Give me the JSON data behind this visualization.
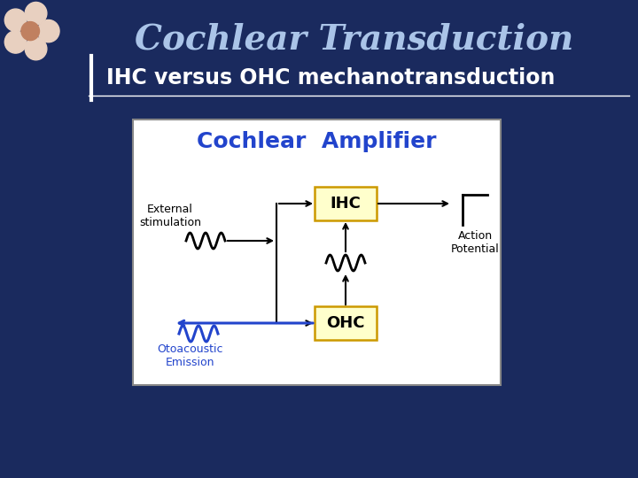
{
  "title": "Cochlear Transduction",
  "subtitle": "IHC versus OHC mechanotransduction",
  "bg_color": "#1a2a5e",
  "title_color": "#aac4e8",
  "subtitle_color": "#ffffff",
  "box_title": "Cochlear  Amplifier",
  "box_bg": "#ffffff",
  "box_border": "#888888",
  "ihc_label": "IHC",
  "ohc_label": "OHC",
  "ihc_box_color": "#ffffcc",
  "ohc_box_color": "#ffffcc",
  "ihc_box_border": "#cc9900",
  "ohc_box_border": "#cc9900",
  "ext_stim_label": "External\nstimulation",
  "action_pot_label": "Action\nPotential",
  "otoacoustic_label": "Otoacoustic\nEmission",
  "arrow_color": "#000000",
  "blue_arrow_color": "#2244cc",
  "wave_color_dark": "#000000",
  "wave_color_blue": "#2244cc",
  "cochlear_amplifier_color": "#2244cc"
}
